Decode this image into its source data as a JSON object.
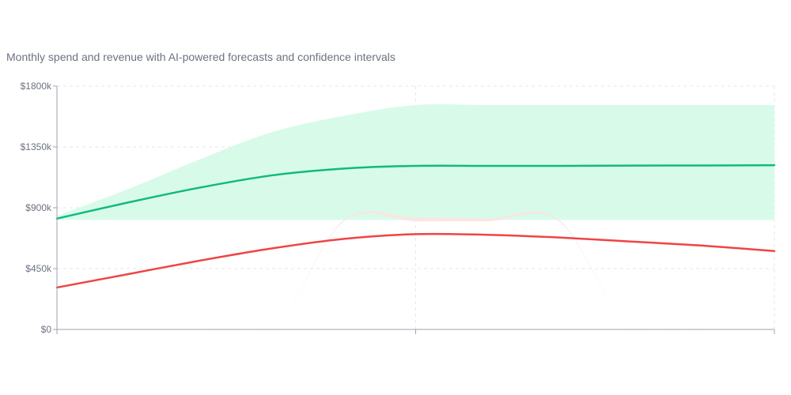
{
  "chart_data": {
    "type": "area",
    "title": "",
    "subtitle": "Monthly spend and revenue with AI-powered forecasts and confidence intervals",
    "xlabel": "",
    "ylabel": "",
    "ylim": [
      0,
      1800
    ],
    "y_ticks": [
      "$0",
      "$450k",
      "$900k",
      "$1350k",
      "$1800k"
    ],
    "y_tick_values": [
      0,
      450,
      900,
      1350,
      1800
    ],
    "x_ticks": [
      "",
      "",
      ""
    ],
    "x": [
      0,
      0.1,
      0.2,
      0.3,
      0.4,
      0.5,
      0.6,
      0.7,
      0.8,
      0.9,
      1.0
    ],
    "grid": true,
    "colors": {
      "revenue": "#10b981",
      "spend": "#ef4444",
      "revenue_band": "#d1fae5",
      "spend_band": "#fee2e2",
      "grid": "#e5e7eb",
      "axis": "#9ca3af"
    },
    "series": [
      {
        "key": "revenue",
        "values": [
          820,
          940,
          1050,
          1140,
          1190,
          1210,
          1210,
          1210,
          1212,
          1213,
          1215
        ]
      },
      {
        "key": "spend",
        "values": [
          310,
          410,
          510,
          600,
          670,
          705,
          700,
          680,
          650,
          620,
          580
        ]
      }
    ],
    "bands": [
      {
        "key": "revenue_band",
        "lower": [
          810,
          810,
          810,
          810,
          810,
          810,
          810,
          810,
          810,
          810,
          810
        ],
        "upper": [
          840,
          1040,
          1260,
          1460,
          1580,
          1660,
          1660,
          1660,
          1660,
          1660,
          1660
        ]
      },
      {
        "key": "spend_band",
        "lower": [
          0,
          0,
          0,
          0,
          800,
          800,
          800,
          800,
          0,
          0,
          0
        ],
        "upper": [
          0,
          0,
          0,
          0,
          810,
          828,
          820,
          810,
          0,
          0,
          0
        ]
      }
    ]
  }
}
